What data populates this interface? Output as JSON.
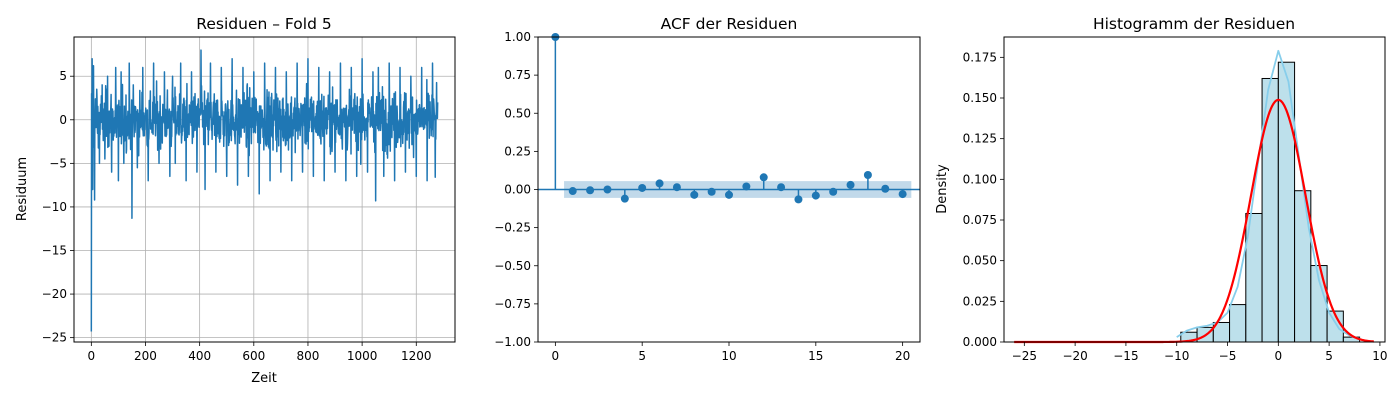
{
  "chart_data": [
    {
      "type": "line",
      "title": "Residuen – Fold 5",
      "xlabel": "Zeit",
      "ylabel": "Residuum",
      "xlim": [
        -64,
        1343
      ],
      "ylim": [
        -25.5,
        9.5
      ],
      "xticks": [
        0,
        200,
        400,
        600,
        800,
        1000,
        1200
      ],
      "yticks": [
        -25,
        -20,
        -15,
        -10,
        -5,
        0,
        5
      ],
      "grid": true,
      "color": "#1f77b4",
      "n_points": 1280,
      "series": [
        {
          "x": [
            0,
            1,
            2,
            3,
            5,
            8,
            12,
            20,
            30,
            40,
            50,
            60,
            75,
            90,
            100,
            110,
            120,
            140,
            150,
            155,
            170,
            190,
            210,
            230,
            250,
            270,
            290,
            300,
            310,
            330,
            350,
            370,
            390,
            405,
            420,
            440,
            460,
            480,
            500,
            520,
            540,
            560,
            580,
            600,
            620,
            640,
            660,
            680,
            700,
            720,
            740,
            760,
            780,
            800,
            820,
            840,
            860,
            880,
            900,
            920,
            940,
            960,
            980,
            1000,
            1020,
            1040,
            1050,
            1060,
            1080,
            1100,
            1120,
            1140,
            1160,
            1180,
            1200,
            1220,
            1240,
            1260,
            1270,
            1279
          ],
          "y": [
            -24.3,
            3.0,
            -5.0,
            7.0,
            -8.0,
            6.2,
            -9.2,
            3.5,
            -5.0,
            4.0,
            -4.5,
            5.0,
            -6.0,
            6.0,
            -7.0,
            5.5,
            -5.0,
            6.5,
            -11.3,
            4.0,
            -5.5,
            6.0,
            -7.0,
            6.5,
            -5.0,
            5.5,
            -6.5,
            5.0,
            -5.0,
            6.5,
            -7.0,
            5.5,
            -6.0,
            8.0,
            -8.0,
            6.5,
            -6.0,
            6.0,
            -6.5,
            7.0,
            -7.5,
            6.0,
            -6.5,
            5.5,
            -8.5,
            6.5,
            -7.0,
            6.0,
            -6.0,
            5.5,
            -7.0,
            6.5,
            -6.0,
            7.0,
            -6.5,
            6.0,
            -7.0,
            5.5,
            -6.0,
            6.5,
            -7.0,
            6.0,
            -6.5,
            7.0,
            -6.0,
            5.5,
            -9.3,
            6.0,
            -6.5,
            6.5,
            -7.0,
            6.0,
            -6.0,
            5.0,
            -6.5,
            6.0,
            -7.0,
            6.5,
            -6.6,
            2.0
          ]
        }
      ]
    },
    {
      "type": "scatter",
      "subtype": "stem",
      "title": "ACF der Residuen",
      "xlabel": "",
      "ylabel": "",
      "xlim": [
        -1,
        21
      ],
      "ylim": [
        -1.0,
        1.0
      ],
      "xticks": [
        0,
        5,
        10,
        15,
        20
      ],
      "yticks": [
        -1.0,
        -0.75,
        -0.5,
        -0.25,
        0.0,
        0.25,
        0.5,
        0.75,
        1.0
      ],
      "ytick_labels": [
        "−1.00",
        "−0.75",
        "−0.50",
        "−0.25",
        "0.00",
        "0.25",
        "0.50",
        "0.75",
        "1.00"
      ],
      "confidence_band": [
        -0.055,
        0.055
      ],
      "color": "#1f77b4",
      "band_color": "#1f77b4",
      "grid": false,
      "x": [
        0,
        1,
        2,
        3,
        4,
        5,
        6,
        7,
        8,
        9,
        10,
        11,
        12,
        13,
        14,
        15,
        16,
        17,
        18,
        19,
        20
      ],
      "y": [
        1.0,
        -0.01,
        -0.005,
        0.0,
        -0.06,
        0.01,
        0.04,
        0.015,
        -0.035,
        -0.015,
        -0.035,
        0.02,
        0.08,
        0.015,
        -0.065,
        -0.04,
        -0.015,
        0.03,
        0.095,
        0.005,
        -0.03
      ]
    },
    {
      "type": "bar",
      "subtype": "histogram",
      "title": "Histogramm der Residuen",
      "xlabel": "",
      "ylabel": "Density",
      "xlim": [
        -27.0,
        10.5
      ],
      "ylim": [
        0.0,
        0.1875
      ],
      "xticks": [
        -25,
        -20,
        -15,
        -10,
        -5,
        0,
        5,
        10
      ],
      "xtick_labels": [
        "−25",
        "−20",
        "−15",
        "−10",
        "−5",
        "0",
        "5",
        "10"
      ],
      "yticks": [
        0.0,
        0.025,
        0.05,
        0.075,
        0.1,
        0.125,
        0.15,
        0.175
      ],
      "ytick_labels": [
        "0.000",
        "0.025",
        "0.050",
        "0.075",
        "0.100",
        "0.125",
        "0.150",
        "0.175"
      ],
      "grid": false,
      "bar_color": "#add8e6",
      "kde_color": "#87ceeb",
      "normal_fit_color": "#ff0000",
      "bins": [
        {
          "x0": -9.6,
          "x1": -8.0,
          "density": 0.006
        },
        {
          "x0": -8.0,
          "x1": -6.4,
          "density": 0.009
        },
        {
          "x0": -6.4,
          "x1": -4.8,
          "density": 0.012
        },
        {
          "x0": -4.8,
          "x1": -3.2,
          "density": 0.023
        },
        {
          "x0": -3.2,
          "x1": -1.6,
          "density": 0.079
        },
        {
          "x0": -1.6,
          "x1": 0.0,
          "density": 0.162
        },
        {
          "x0": 0.0,
          "x1": 1.6,
          "density": 0.172
        },
        {
          "x0": 1.6,
          "x1": 3.2,
          "density": 0.093
        },
        {
          "x0": 3.2,
          "x1": 4.8,
          "density": 0.047
        },
        {
          "x0": 4.8,
          "x1": 6.4,
          "density": 0.019
        },
        {
          "x0": 6.4,
          "x1": 8.0,
          "density": 0.003
        }
      ],
      "kde": {
        "x": [
          -10,
          -9,
          -8,
          -7,
          -6,
          -5,
          -4,
          -3,
          -2,
          -1,
          0,
          1,
          2,
          3,
          4,
          5,
          6,
          7,
          8
        ],
        "y": [
          0.003,
          0.007,
          0.009,
          0.01,
          0.012,
          0.018,
          0.034,
          0.065,
          0.11,
          0.155,
          0.179,
          0.16,
          0.115,
          0.07,
          0.038,
          0.018,
          0.008,
          0.004,
          0.002
        ]
      },
      "normal_fit": {
        "mean": 0.0,
        "std": 2.68,
        "x_range": [
          -26,
          9.4
        ]
      }
    }
  ]
}
